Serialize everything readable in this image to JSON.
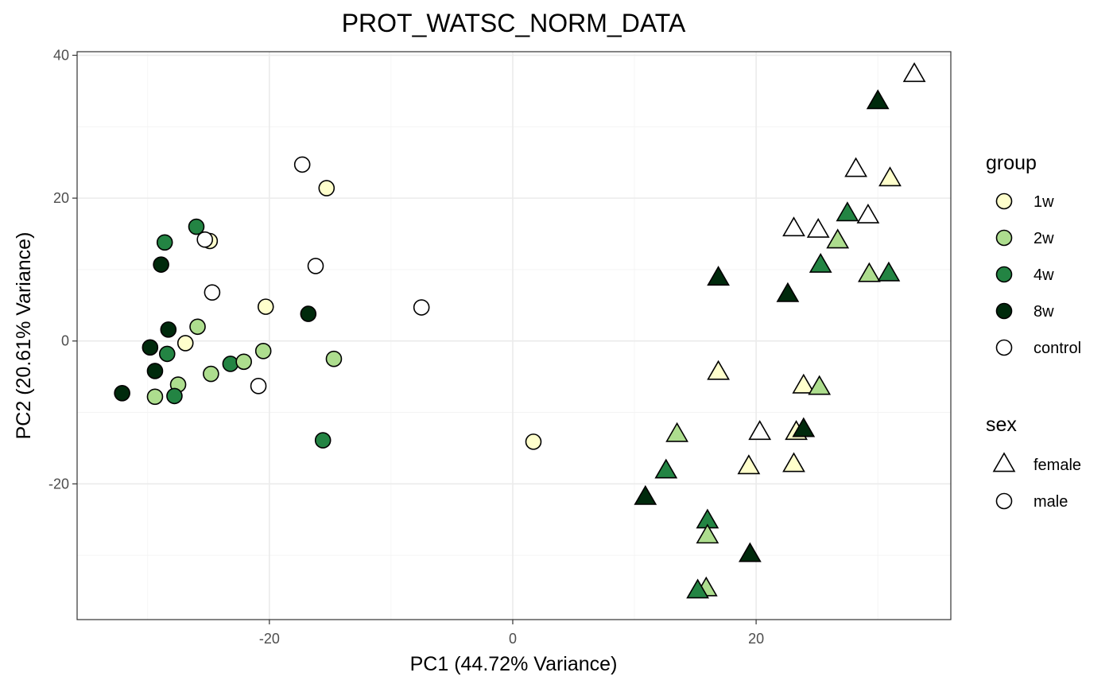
{
  "chart_data": {
    "type": "scatter",
    "title": "PROT_WATSC_NORM_DATA",
    "xlabel": "PC1 (44.72% Variance)",
    "ylabel": "PC2 (20.61% Variance)",
    "xlim": [
      -35.8,
      36.0
    ],
    "ylim": [
      -39.0,
      40.5
    ],
    "x_ticks": [
      -20,
      0,
      20
    ],
    "y_ticks": [
      -20,
      0,
      20,
      40
    ],
    "x_tick_labels": [
      "-20",
      "0",
      "20"
    ],
    "y_tick_labels": [
      "-20",
      "0",
      "20",
      "40"
    ],
    "grid": true,
    "legend_position": "right",
    "group_legend": {
      "title": "group",
      "entries": [
        {
          "label": "1w",
          "color": "#ffffcc"
        },
        {
          "label": "2w",
          "color": "#addd8e"
        },
        {
          "label": "4w",
          "color": "#238443"
        },
        {
          "label": "8w",
          "color": "#002a0c"
        },
        {
          "label": "control",
          "color": "#ffffff"
        }
      ]
    },
    "shape_legend": {
      "title": "sex",
      "entries": [
        {
          "label": "female",
          "shape": "triangle"
        },
        {
          "label": "male",
          "shape": "circle"
        }
      ]
    },
    "points": [
      {
        "x": -17.3,
        "y": 24.7,
        "group": "control",
        "sex": "male"
      },
      {
        "x": -15.3,
        "y": 21.4,
        "group": "1w",
        "sex": "male"
      },
      {
        "x": -26.0,
        "y": 16.0,
        "group": "4w",
        "sex": "male"
      },
      {
        "x": -28.6,
        "y": 13.8,
        "group": "4w",
        "sex": "male"
      },
      {
        "x": -24.9,
        "y": 14.0,
        "group": "1w",
        "sex": "male"
      },
      {
        "x": -25.3,
        "y": 14.2,
        "group": "control",
        "sex": "male"
      },
      {
        "x": -28.9,
        "y": 10.7,
        "group": "8w",
        "sex": "male"
      },
      {
        "x": -16.2,
        "y": 10.5,
        "group": "control",
        "sex": "male"
      },
      {
        "x": -24.7,
        "y": 6.8,
        "group": "control",
        "sex": "male"
      },
      {
        "x": -20.3,
        "y": 4.8,
        "group": "1w",
        "sex": "male"
      },
      {
        "x": -7.5,
        "y": 4.7,
        "group": "control",
        "sex": "male"
      },
      {
        "x": -16.8,
        "y": 3.8,
        "group": "8w",
        "sex": "male"
      },
      {
        "x": -25.9,
        "y": 2.0,
        "group": "2w",
        "sex": "male"
      },
      {
        "x": -28.3,
        "y": 1.6,
        "group": "8w",
        "sex": "male"
      },
      {
        "x": -26.9,
        "y": -0.3,
        "group": "1w",
        "sex": "male"
      },
      {
        "x": -29.8,
        "y": -0.9,
        "group": "8w",
        "sex": "male"
      },
      {
        "x": -28.4,
        "y": -1.8,
        "group": "4w",
        "sex": "male"
      },
      {
        "x": -20.5,
        "y": -1.4,
        "group": "2w",
        "sex": "male"
      },
      {
        "x": -14.7,
        "y": -2.5,
        "group": "2w",
        "sex": "male"
      },
      {
        "x": -23.2,
        "y": -3.2,
        "group": "4w",
        "sex": "male"
      },
      {
        "x": -22.1,
        "y": -2.9,
        "group": "2w",
        "sex": "male"
      },
      {
        "x": -29.4,
        "y": -4.2,
        "group": "8w",
        "sex": "male"
      },
      {
        "x": -24.8,
        "y": -4.6,
        "group": "2w",
        "sex": "male"
      },
      {
        "x": -27.5,
        "y": -6.1,
        "group": "2w",
        "sex": "male"
      },
      {
        "x": -32.1,
        "y": -7.3,
        "group": "8w",
        "sex": "male"
      },
      {
        "x": -29.4,
        "y": -7.8,
        "group": "2w",
        "sex": "male"
      },
      {
        "x": -27.8,
        "y": -7.7,
        "group": "4w",
        "sex": "male"
      },
      {
        "x": -20.9,
        "y": -6.3,
        "group": "control",
        "sex": "male"
      },
      {
        "x": -15.6,
        "y": -13.9,
        "group": "4w",
        "sex": "male"
      },
      {
        "x": 1.7,
        "y": -14.1,
        "group": "1w",
        "sex": "male"
      },
      {
        "x": 33.0,
        "y": 37.3,
        "group": "control",
        "sex": "female"
      },
      {
        "x": 30.0,
        "y": 33.5,
        "group": "8w",
        "sex": "female"
      },
      {
        "x": 28.2,
        "y": 24.0,
        "group": "control",
        "sex": "female"
      },
      {
        "x": 31.0,
        "y": 22.7,
        "group": "1w",
        "sex": "female"
      },
      {
        "x": 27.5,
        "y": 17.8,
        "group": "4w",
        "sex": "female"
      },
      {
        "x": 29.2,
        "y": 17.5,
        "group": "control",
        "sex": "female"
      },
      {
        "x": 23.1,
        "y": 15.7,
        "group": "control",
        "sex": "female"
      },
      {
        "x": 25.1,
        "y": 15.5,
        "group": "control",
        "sex": "female"
      },
      {
        "x": 26.7,
        "y": 14.0,
        "group": "2w",
        "sex": "female"
      },
      {
        "x": 25.3,
        "y": 10.6,
        "group": "4w",
        "sex": "female"
      },
      {
        "x": 29.3,
        "y": 9.3,
        "group": "2w",
        "sex": "female"
      },
      {
        "x": 30.9,
        "y": 9.4,
        "group": "4w",
        "sex": "female"
      },
      {
        "x": 16.9,
        "y": 8.8,
        "group": "8w",
        "sex": "female"
      },
      {
        "x": 22.6,
        "y": 6.5,
        "group": "8w",
        "sex": "female"
      },
      {
        "x": 16.9,
        "y": -4.4,
        "group": "1w",
        "sex": "female"
      },
      {
        "x": 23.9,
        "y": -6.3,
        "group": "1w",
        "sex": "female"
      },
      {
        "x": 25.2,
        "y": -6.5,
        "group": "2w",
        "sex": "female"
      },
      {
        "x": 13.5,
        "y": -13.1,
        "group": "2w",
        "sex": "female"
      },
      {
        "x": 20.3,
        "y": -12.8,
        "group": "control",
        "sex": "female"
      },
      {
        "x": 23.3,
        "y": -12.8,
        "group": "1w",
        "sex": "female"
      },
      {
        "x": 23.9,
        "y": -12.4,
        "group": "8w",
        "sex": "female"
      },
      {
        "x": 19.4,
        "y": -17.6,
        "group": "1w",
        "sex": "female"
      },
      {
        "x": 23.1,
        "y": -17.3,
        "group": "1w",
        "sex": "female"
      },
      {
        "x": 12.6,
        "y": -18.2,
        "group": "4w",
        "sex": "female"
      },
      {
        "x": 10.9,
        "y": -21.9,
        "group": "8w",
        "sex": "female"
      },
      {
        "x": 16.0,
        "y": -25.2,
        "group": "4w",
        "sex": "female"
      },
      {
        "x": 16.0,
        "y": -27.3,
        "group": "2w",
        "sex": "female"
      },
      {
        "x": 19.5,
        "y": -29.9,
        "group": "8w",
        "sex": "female"
      },
      {
        "x": 15.9,
        "y": -34.7,
        "group": "2w",
        "sex": "female"
      },
      {
        "x": 15.2,
        "y": -35.0,
        "group": "4w",
        "sex": "female"
      }
    ]
  }
}
